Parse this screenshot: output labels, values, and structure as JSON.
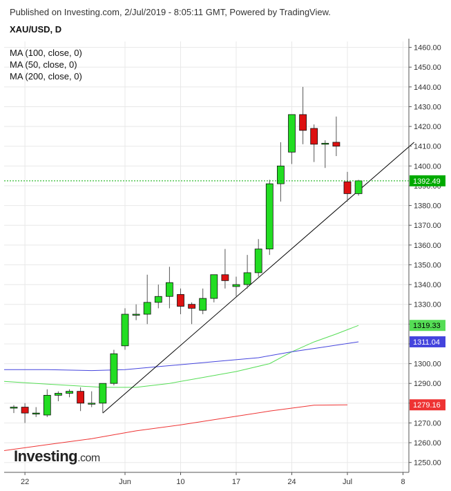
{
  "header": {
    "published": "Published on Investing.com, 2/Jul/2019 - 8:05:11 GMT, Powered by TradingView.",
    "symbol": "XAU/USD, D"
  },
  "legend": {
    "ma100": "MA (100, close, 0)",
    "ma50": "MA (50, close, 0)",
    "ma200": "MA (200, close, 0)"
  },
  "logo": {
    "main": "Investing",
    "suffix": ".com"
  },
  "colors": {
    "up": "#22dd22",
    "down": "#dd1111",
    "ma100": "#4444dd",
    "ma50": "#55dd55",
    "ma200": "#ee3333",
    "price_line": "#00aa00",
    "grid": "#e8e8e8",
    "trend": "#000000"
  },
  "chart_data": {
    "type": "candlestick",
    "title": "XAU/USD, D",
    "ylim": [
      1245,
      1463
    ],
    "y_ticks": [
      1250,
      1260,
      1270,
      1280,
      1290,
      1300,
      1310,
      1320,
      1330,
      1340,
      1350,
      1360,
      1370,
      1380,
      1390,
      1400,
      1410,
      1420,
      1430,
      1440,
      1450,
      1460
    ],
    "x_ticks": [
      {
        "label": "22",
        "slot": 1
      },
      {
        "label": "Jun",
        "slot": 10
      },
      {
        "label": "10",
        "slot": 15
      },
      {
        "label": "17",
        "slot": 20
      },
      {
        "label": "24",
        "slot": 25
      },
      {
        "label": "Jul",
        "slot": 30
      },
      {
        "label": "8",
        "slot": 35
      }
    ],
    "candles": [
      {
        "slot": 0,
        "o": 1277.5,
        "h": 1279,
        "l": 1275,
        "c": 1278
      },
      {
        "slot": 1,
        "o": 1278,
        "h": 1280,
        "l": 1270,
        "c": 1275
      },
      {
        "slot": 2,
        "o": 1274.5,
        "h": 1278,
        "l": 1273,
        "c": 1275
      },
      {
        "slot": 3,
        "o": 1274,
        "h": 1287,
        "l": 1273,
        "c": 1284
      },
      {
        "slot": 4,
        "o": 1284,
        "h": 1286,
        "l": 1281,
        "c": 1285
      },
      {
        "slot": 5,
        "o": 1285,
        "h": 1287,
        "l": 1283,
        "c": 1286
      },
      {
        "slot": 6,
        "o": 1286,
        "h": 1288,
        "l": 1276,
        "c": 1280
      },
      {
        "slot": 7,
        "o": 1280,
        "h": 1286,
        "l": 1278,
        "c": 1280
      },
      {
        "slot": 8,
        "o": 1280,
        "h": 1290,
        "l": 1275,
        "c": 1290
      },
      {
        "slot": 9,
        "o": 1290,
        "h": 1307,
        "l": 1289,
        "c": 1305
      },
      {
        "slot": 10,
        "o": 1309,
        "h": 1328,
        "l": 1307,
        "c": 1325
      },
      {
        "slot": 11,
        "o": 1325,
        "h": 1330,
        "l": 1322,
        "c": 1325
      },
      {
        "slot": 12,
        "o": 1325,
        "h": 1345,
        "l": 1320,
        "c": 1331
      },
      {
        "slot": 13,
        "o": 1331,
        "h": 1340,
        "l": 1328,
        "c": 1334
      },
      {
        "slot": 14,
        "o": 1334,
        "h": 1349,
        "l": 1328,
        "c": 1341
      },
      {
        "slot": 15,
        "o": 1335,
        "h": 1338,
        "l": 1325,
        "c": 1329
      },
      {
        "slot": 16,
        "o": 1330,
        "h": 1331,
        "l": 1320,
        "c": 1328
      },
      {
        "slot": 17,
        "o": 1327,
        "h": 1338,
        "l": 1325,
        "c": 1333
      },
      {
        "slot": 18,
        "o": 1333,
        "h": 1345,
        "l": 1331,
        "c": 1345
      },
      {
        "slot": 19,
        "o": 1345,
        "h": 1358,
        "l": 1338,
        "c": 1342
      },
      {
        "slot": 20,
        "o": 1339,
        "h": 1344,
        "l": 1334,
        "c": 1340
      },
      {
        "slot": 21,
        "o": 1340,
        "h": 1355,
        "l": 1338,
        "c": 1346
      },
      {
        "slot": 22,
        "o": 1346,
        "h": 1363,
        "l": 1344,
        "c": 1358
      },
      {
        "slot": 23,
        "o": 1358,
        "h": 1393,
        "l": 1355,
        "c": 1391
      },
      {
        "slot": 24,
        "o": 1391,
        "h": 1412,
        "l": 1382,
        "c": 1400
      },
      {
        "slot": 25,
        "o": 1407,
        "h": 1426,
        "l": 1401,
        "c": 1426
      },
      {
        "slot": 26,
        "o": 1426,
        "h": 1440,
        "l": 1411,
        "c": 1418
      },
      {
        "slot": 27,
        "o": 1419,
        "h": 1421,
        "l": 1402,
        "c": 1411
      },
      {
        "slot": 28,
        "o": 1411,
        "h": 1413,
        "l": 1399,
        "c": 1411.5
      },
      {
        "slot": 29,
        "o": 1412,
        "h": 1425,
        "l": 1405,
        "c": 1410
      },
      {
        "slot": 30,
        "o": 1392,
        "h": 1397,
        "l": 1382,
        "c": 1386
      },
      {
        "slot": 31,
        "o": 1386,
        "h": 1393,
        "l": 1385,
        "c": 1392.49
      }
    ],
    "moving_averages": [
      {
        "name": "MA (200, close, 0)",
        "color": "#ee3333",
        "label": "1279.16",
        "points": [
          [
            -1,
            1256
          ],
          [
            3,
            1259
          ],
          [
            7,
            1262
          ],
          [
            11,
            1266
          ],
          [
            15,
            1269
          ],
          [
            19,
            1272.5
          ],
          [
            23,
            1276
          ],
          [
            27,
            1279
          ],
          [
            30,
            1279.16
          ]
        ]
      },
      {
        "name": "MA (50, close, 0)",
        "color": "#55dd55",
        "label": "1319.33",
        "points": [
          [
            -1,
            1291
          ],
          [
            2,
            1290
          ],
          [
            5,
            1289
          ],
          [
            8,
            1288
          ],
          [
            11,
            1288
          ],
          [
            14,
            1290
          ],
          [
            17,
            1293
          ],
          [
            20,
            1296
          ],
          [
            23,
            1300
          ],
          [
            25,
            1306
          ],
          [
            27,
            1311
          ],
          [
            29,
            1315
          ],
          [
            31,
            1319.33
          ]
        ]
      },
      {
        "name": "MA (100, close, 0)",
        "color": "#4444dd",
        "label": "1311.04",
        "points": [
          [
            -1,
            1297
          ],
          [
            3,
            1297
          ],
          [
            7,
            1296.5
          ],
          [
            10,
            1297
          ],
          [
            13,
            1298.5
          ],
          [
            16,
            1300
          ],
          [
            19,
            1301.5
          ],
          [
            22,
            1303
          ],
          [
            25,
            1306
          ],
          [
            28,
            1308.5
          ],
          [
            31,
            1311.04
          ]
        ]
      }
    ],
    "current_price": {
      "value": 1392.49,
      "label": "1392.49",
      "color": "#00aa00"
    },
    "trendline": {
      "from": [
        8,
        1275
      ],
      "to": [
        36,
        1412
      ]
    }
  }
}
